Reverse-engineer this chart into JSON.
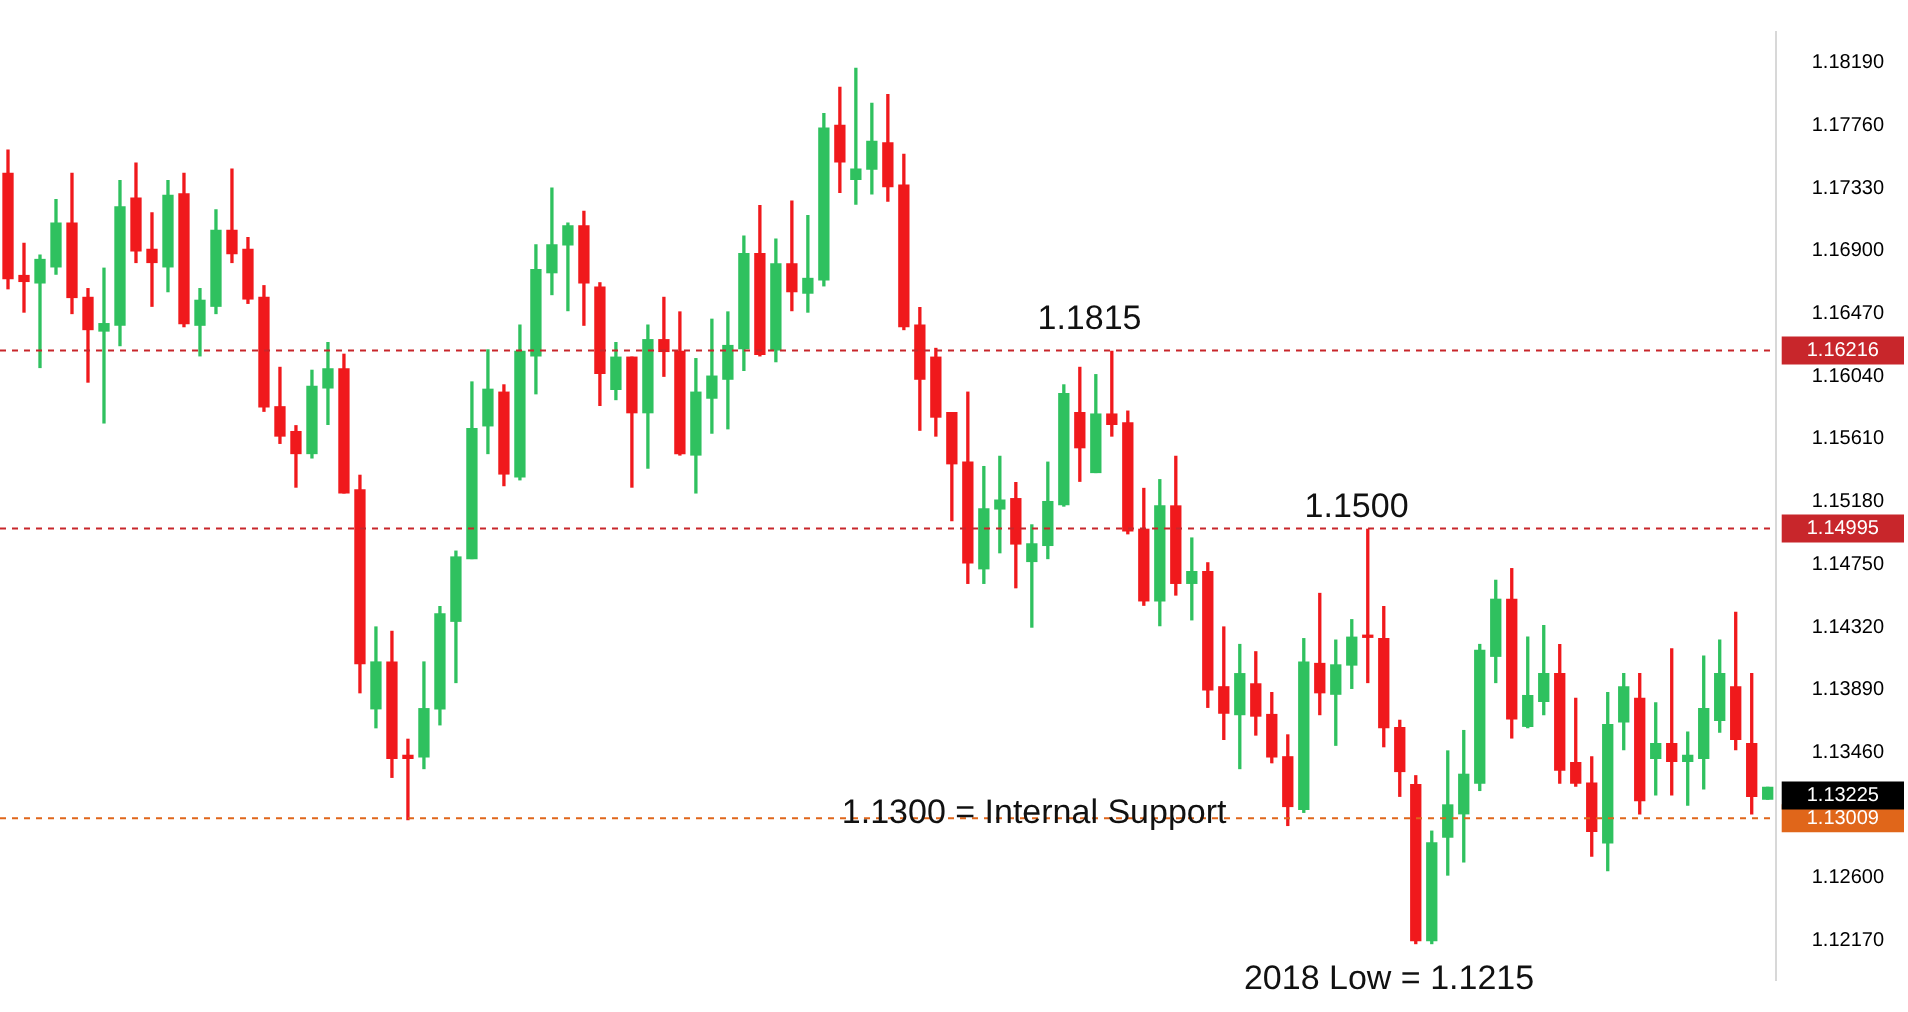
{
  "chart_data": {
    "type": "candlestick",
    "categories": [
      null,
      null,
      null,
      null,
      null,
      null,
      null,
      null,
      null,
      null,
      null,
      null,
      null,
      null,
      null,
      null,
      null,
      null,
      null,
      null,
      null,
      null,
      null,
      null,
      null,
      null,
      null,
      null,
      null,
      null,
      null,
      null,
      null,
      null,
      null,
      null,
      null,
      null,
      null,
      null,
      null,
      null,
      null,
      null,
      null,
      null,
      null,
      null,
      null,
      null,
      null,
      null,
      null,
      null,
      null,
      null,
      null,
      null,
      null,
      null,
      null,
      null,
      null,
      null,
      null,
      null,
      null,
      null,
      null,
      null,
      null,
      null,
      null,
      null,
      null,
      null,
      null,
      null,
      null,
      null,
      null,
      null,
      null,
      null,
      null,
      null,
      null,
      null,
      null,
      null,
      null,
      null,
      null,
      null,
      null,
      null,
      null,
      null,
      null,
      null,
      null,
      null,
      null,
      null,
      null,
      null,
      null,
      null,
      null,
      null,
      null
    ],
    "ohlc": [
      [
        1.1743,
        1.1759,
        1.1664,
        1.1671
      ],
      [
        1.1673,
        1.1695,
        1.1648,
        1.1669
      ],
      [
        1.1668,
        1.1687,
        1.161,
        1.1684
      ],
      [
        1.1679,
        1.1725,
        1.1674,
        1.1709
      ],
      [
        1.1709,
        1.1743,
        1.1647,
        1.1658
      ],
      [
        1.1658,
        1.1664,
        1.16,
        1.1636
      ],
      [
        1.1635,
        1.1678,
        1.1572,
        1.164
      ],
      [
        1.1639,
        1.1738,
        1.1625,
        1.172
      ],
      [
        1.1726,
        1.175,
        1.1682,
        1.169
      ],
      [
        1.1691,
        1.1716,
        1.1652,
        1.1682
      ],
      [
        1.1679,
        1.1738,
        1.1662,
        1.1728
      ],
      [
        1.1729,
        1.1743,
        1.1638,
        1.164
      ],
      [
        1.1639,
        1.1664,
        1.1618,
        1.1656
      ],
      [
        1.1652,
        1.1718,
        1.1647,
        1.1704
      ],
      [
        1.1704,
        1.1746,
        1.1682,
        1.1688
      ],
      [
        1.1691,
        1.1699,
        1.1654,
        1.1657
      ],
      [
        1.1658,
        1.1666,
        1.158,
        1.1583
      ],
      [
        1.1583,
        1.161,
        1.1558,
        1.1563
      ],
      [
        1.1566,
        1.157,
        1.1528,
        1.1551
      ],
      [
        1.1551,
        1.1608,
        1.1548,
        1.1597
      ],
      [
        1.1596,
        1.1627,
        1.1571,
        1.1609
      ],
      [
        1.1609,
        1.1619,
        1.1524,
        1.1524
      ],
      [
        1.1526,
        1.1536,
        1.1387,
        1.1407
      ],
      [
        1.1376,
        1.1432,
        1.1363,
        1.1408
      ],
      [
        1.1408,
        1.1429,
        1.1329,
        1.1342
      ],
      [
        1.1344,
        1.1355,
        1.13,
        1.1342
      ],
      [
        1.1343,
        1.1408,
        1.1335,
        1.1376
      ],
      [
        1.1376,
        1.1446,
        1.1365,
        1.1441
      ],
      [
        1.1436,
        1.1484,
        1.1394,
        1.148
      ],
      [
        1.1479,
        1.16,
        1.1479,
        1.1568
      ],
      [
        1.157,
        1.1622,
        1.1551,
        1.1595
      ],
      [
        1.1593,
        1.1598,
        1.1529,
        1.1537
      ],
      [
        1.1535,
        1.1639,
        1.1533,
        1.1621
      ],
      [
        1.1618,
        1.1694,
        1.1592,
        1.1677
      ],
      [
        1.1675,
        1.1733,
        1.166,
        1.1694
      ],
      [
        1.1694,
        1.1709,
        1.1649,
        1.1707
      ],
      [
        1.1707,
        1.1717,
        1.1639,
        1.1668
      ],
      [
        1.1665,
        1.1668,
        1.1584,
        1.1606
      ],
      [
        1.1595,
        1.1627,
        1.1588,
        1.1617
      ],
      [
        1.1617,
        1.1617,
        1.1528,
        1.1579
      ],
      [
        1.1579,
        1.1639,
        1.1541,
        1.1629
      ],
      [
        1.1629,
        1.1658,
        1.1604,
        1.1621
      ],
      [
        1.1621,
        1.1648,
        1.155,
        1.1551
      ],
      [
        1.155,
        1.1616,
        1.1524,
        1.1593
      ],
      [
        1.1589,
        1.1643,
        1.1565,
        1.1604
      ],
      [
        1.1602,
        1.1648,
        1.1568,
        1.1625
      ],
      [
        1.1623,
        1.17,
        1.1608,
        1.1688
      ],
      [
        1.1688,
        1.1721,
        1.1618,
        1.1619
      ],
      [
        1.1622,
        1.1698,
        1.1614,
        1.1681
      ],
      [
        1.1681,
        1.1724,
        1.1649,
        1.1662
      ],
      [
        1.1661,
        1.1714,
        1.1648,
        1.1671
      ],
      [
        1.167,
        1.1784,
        1.1666,
        1.1774
      ],
      [
        1.1776,
        1.1802,
        1.173,
        1.1751
      ],
      [
        1.1739,
        1.1815,
        1.1722,
        1.1746
      ],
      [
        1.1746,
        1.1791,
        1.1729,
        1.1765
      ],
      [
        1.1764,
        1.1797,
        1.1724,
        1.1734
      ],
      [
        1.1735,
        1.1756,
        1.1636,
        1.1638
      ],
      [
        1.1639,
        1.1651,
        1.1567,
        1.1602
      ],
      [
        1.1617,
        1.1623,
        1.1563,
        1.1576
      ],
      [
        1.1579,
        1.1579,
        1.1505,
        1.1544
      ],
      [
        1.1545,
        1.1593,
        1.1462,
        1.1476
      ],
      [
        1.1472,
        1.1542,
        1.1462,
        1.1513
      ],
      [
        1.1513,
        1.1549,
        1.1483,
        1.1519
      ],
      [
        1.152,
        1.1531,
        1.1459,
        1.1489
      ],
      [
        1.1477,
        1.1502,
        1.1432,
        1.1489
      ],
      [
        1.1488,
        1.1545,
        1.1479,
        1.1518
      ],
      [
        1.1516,
        1.1598,
        1.1515,
        1.1592
      ],
      [
        1.1579,
        1.161,
        1.1532,
        1.1555
      ],
      [
        1.1538,
        1.1605,
        1.1538,
        1.1578
      ],
      [
        1.1578,
        1.1621,
        1.1563,
        1.1571
      ],
      [
        1.1572,
        1.158,
        1.1496,
        1.1498
      ],
      [
        1.1499,
        1.1527,
        1.1447,
        1.145
      ],
      [
        1.145,
        1.1533,
        1.1433,
        1.1515
      ],
      [
        1.1515,
        1.1549,
        1.1454,
        1.1462
      ],
      [
        1.1462,
        1.1493,
        1.1437,
        1.147
      ],
      [
        1.147,
        1.1476,
        1.1377,
        1.1389
      ],
      [
        1.1391,
        1.1432,
        1.1355,
        1.1373
      ],
      [
        1.1372,
        1.142,
        1.1335,
        1.14
      ],
      [
        1.1393,
        1.1415,
        1.1358,
        1.1371
      ],
      [
        1.1372,
        1.1387,
        1.1339,
        1.1343
      ],
      [
        1.1343,
        1.1358,
        1.1296,
        1.1309
      ],
      [
        1.1307,
        1.1424,
        1.1305,
        1.1408
      ],
      [
        1.1407,
        1.1455,
        1.1372,
        1.1387
      ],
      [
        1.1386,
        1.1423,
        1.1351,
        1.1406
      ],
      [
        1.1406,
        1.1437,
        1.139,
        1.1425
      ],
      [
        1.1426,
        1.1499,
        1.1394,
        1.1425
      ],
      [
        1.1424,
        1.1446,
        1.135,
        1.1363
      ],
      [
        1.1363,
        1.1368,
        1.1316,
        1.1333
      ],
      [
        1.1324,
        1.133,
        1.1215,
        1.1217
      ],
      [
        1.1217,
        1.1292,
        1.1215,
        1.1284
      ],
      [
        1.1288,
        1.1347,
        1.1262,
        1.131
      ],
      [
        1.1304,
        1.1361,
        1.1271,
        1.1331
      ],
      [
        1.1325,
        1.142,
        1.132,
        1.1416
      ],
      [
        1.1412,
        1.1464,
        1.1394,
        1.1451
      ],
      [
        1.1451,
        1.1472,
        1.1356,
        1.1369
      ],
      [
        1.1364,
        1.1425,
        1.1363,
        1.1385
      ],
      [
        1.1381,
        1.1433,
        1.1372,
        1.14
      ],
      [
        1.14,
        1.142,
        1.1325,
        1.1334
      ],
      [
        1.1339,
        1.1383,
        1.1323,
        1.1325
      ],
      [
        1.1325,
        1.1343,
        1.1275,
        1.1292
      ],
      [
        1.1284,
        1.1387,
        1.1265,
        1.1365
      ],
      [
        1.1367,
        1.14,
        1.1348,
        1.1391
      ],
      [
        1.1383,
        1.14,
        1.1304,
        1.1313
      ],
      [
        1.1342,
        1.138,
        1.1317,
        1.1352
      ],
      [
        1.1352,
        1.1417,
        1.1317,
        1.134
      ],
      [
        1.134,
        1.136,
        1.131,
        1.1344
      ],
      [
        1.1342,
        1.1412,
        1.1321,
        1.1376
      ],
      [
        1.1368,
        1.1423,
        1.136,
        1.14
      ],
      [
        1.1391,
        1.1442,
        1.1348,
        1.1355
      ],
      [
        1.1352,
        1.14,
        1.1304,
        1.1316
      ],
      [
        1.1314,
        1.1322,
        1.1314,
        1.1322
      ]
    ],
    "colors": [
      "#f0191c",
      "#f0191c",
      "#2fc15f",
      "#2fc15f",
      "#f0191c",
      "#f0191c",
      "#2fc15f",
      "#2fc15f",
      "#f0191c",
      "#f0191c",
      "#2fc15f",
      "#f0191c",
      "#2fc15f",
      "#2fc15f",
      "#f0191c",
      "#f0191c",
      "#f0191c",
      "#f0191c",
      "#f0191c",
      "#2fc15f",
      "#2fc15f",
      "#f0191c",
      "#f0191c",
      "#2fc15f",
      "#f0191c",
      "#f0191c",
      "#2fc15f",
      "#2fc15f",
      "#2fc15f",
      "#2fc15f",
      "#2fc15f",
      "#f0191c",
      "#2fc15f",
      "#2fc15f",
      "#2fc15f",
      "#2fc15f",
      "#f0191c",
      "#f0191c",
      "#2fc15f",
      "#f0191c",
      "#2fc15f",
      "#f0191c",
      "#f0191c",
      "#2fc15f",
      "#2fc15f",
      "#2fc15f",
      "#2fc15f",
      "#f0191c",
      "#2fc15f",
      "#f0191c",
      "#2fc15f",
      "#2fc15f",
      "#f0191c",
      "#2fc15f",
      "#2fc15f",
      "#f0191c",
      "#f0191c",
      "#f0191c",
      "#f0191c",
      "#f0191c",
      "#f0191c",
      "#2fc15f",
      "#2fc15f",
      "#f0191c",
      "#2fc15f",
      "#2fc15f",
      "#2fc15f",
      "#f0191c",
      "#2fc15f",
      "#f0191c",
      "#f0191c",
      "#f0191c",
      "#2fc15f",
      "#f0191c",
      "#2fc15f",
      "#f0191c",
      "#f0191c",
      "#2fc15f",
      "#f0191c",
      "#f0191c",
      "#f0191c",
      "#2fc15f",
      "#f0191c",
      "#2fc15f",
      "#2fc15f",
      "#f0191c",
      "#f0191c",
      "#f0191c",
      "#f0191c",
      "#2fc15f",
      "#2fc15f",
      "#2fc15f",
      "#2fc15f",
      "#2fc15f",
      "#f0191c",
      "#2fc15f",
      "#2fc15f",
      "#f0191c",
      "#f0191c",
      "#f0191c",
      "#2fc15f",
      "#2fc15f",
      "#f0191c",
      "#2fc15f",
      "#f0191c",
      "#2fc15f",
      "#2fc15f",
      "#2fc15f",
      "#f0191c",
      "#f0191c",
      "#2fc15f"
    ],
    "ylim": [
      1.119,
      1.184
    ],
    "yticks": [
      {
        "value": 1.1217,
        "label": "1.12170"
      },
      {
        "value": 1.126,
        "label": "1.12600"
      },
      {
        "value": 1.1346,
        "label": "1.13460"
      },
      {
        "value": 1.1389,
        "label": "1.13890"
      },
      {
        "value": 1.1432,
        "label": "1.14320"
      },
      {
        "value": 1.1475,
        "label": "1.14750"
      },
      {
        "value": 1.1518,
        "label": "1.15180"
      },
      {
        "value": 1.1561,
        "label": "1.15610"
      },
      {
        "value": 1.1604,
        "label": "1.16040"
      },
      {
        "value": 1.1647,
        "label": "1.16470"
      },
      {
        "value": 1.169,
        "label": "1.16900"
      },
      {
        "value": 1.1733,
        "label": "1.17330"
      },
      {
        "value": 1.1776,
        "label": "1.17760"
      },
      {
        "value": 1.1819,
        "label": "1.18190"
      }
    ],
    "ref_lines": [
      {
        "axis": "y",
        "value": 1.16216,
        "label": "1.16216",
        "color": "#c8262b",
        "line_style": "dashed"
      },
      {
        "axis": "y",
        "value": 1.14995,
        "label": "1.14995",
        "color": "#c8262b",
        "line_style": "dashed"
      },
      {
        "axis": "y",
        "value": 1.13009,
        "label": "1.13009",
        "color": "#e0661a",
        "line_style": "dashed"
      }
    ],
    "annotations": [
      "1.1815",
      "1.1500",
      "1.1300 = Internal Support",
      "2018 Low = 1.1215",
      "1.13225"
    ],
    "grid": false,
    "legend": false,
    "tick_labels": "y"
  }
}
